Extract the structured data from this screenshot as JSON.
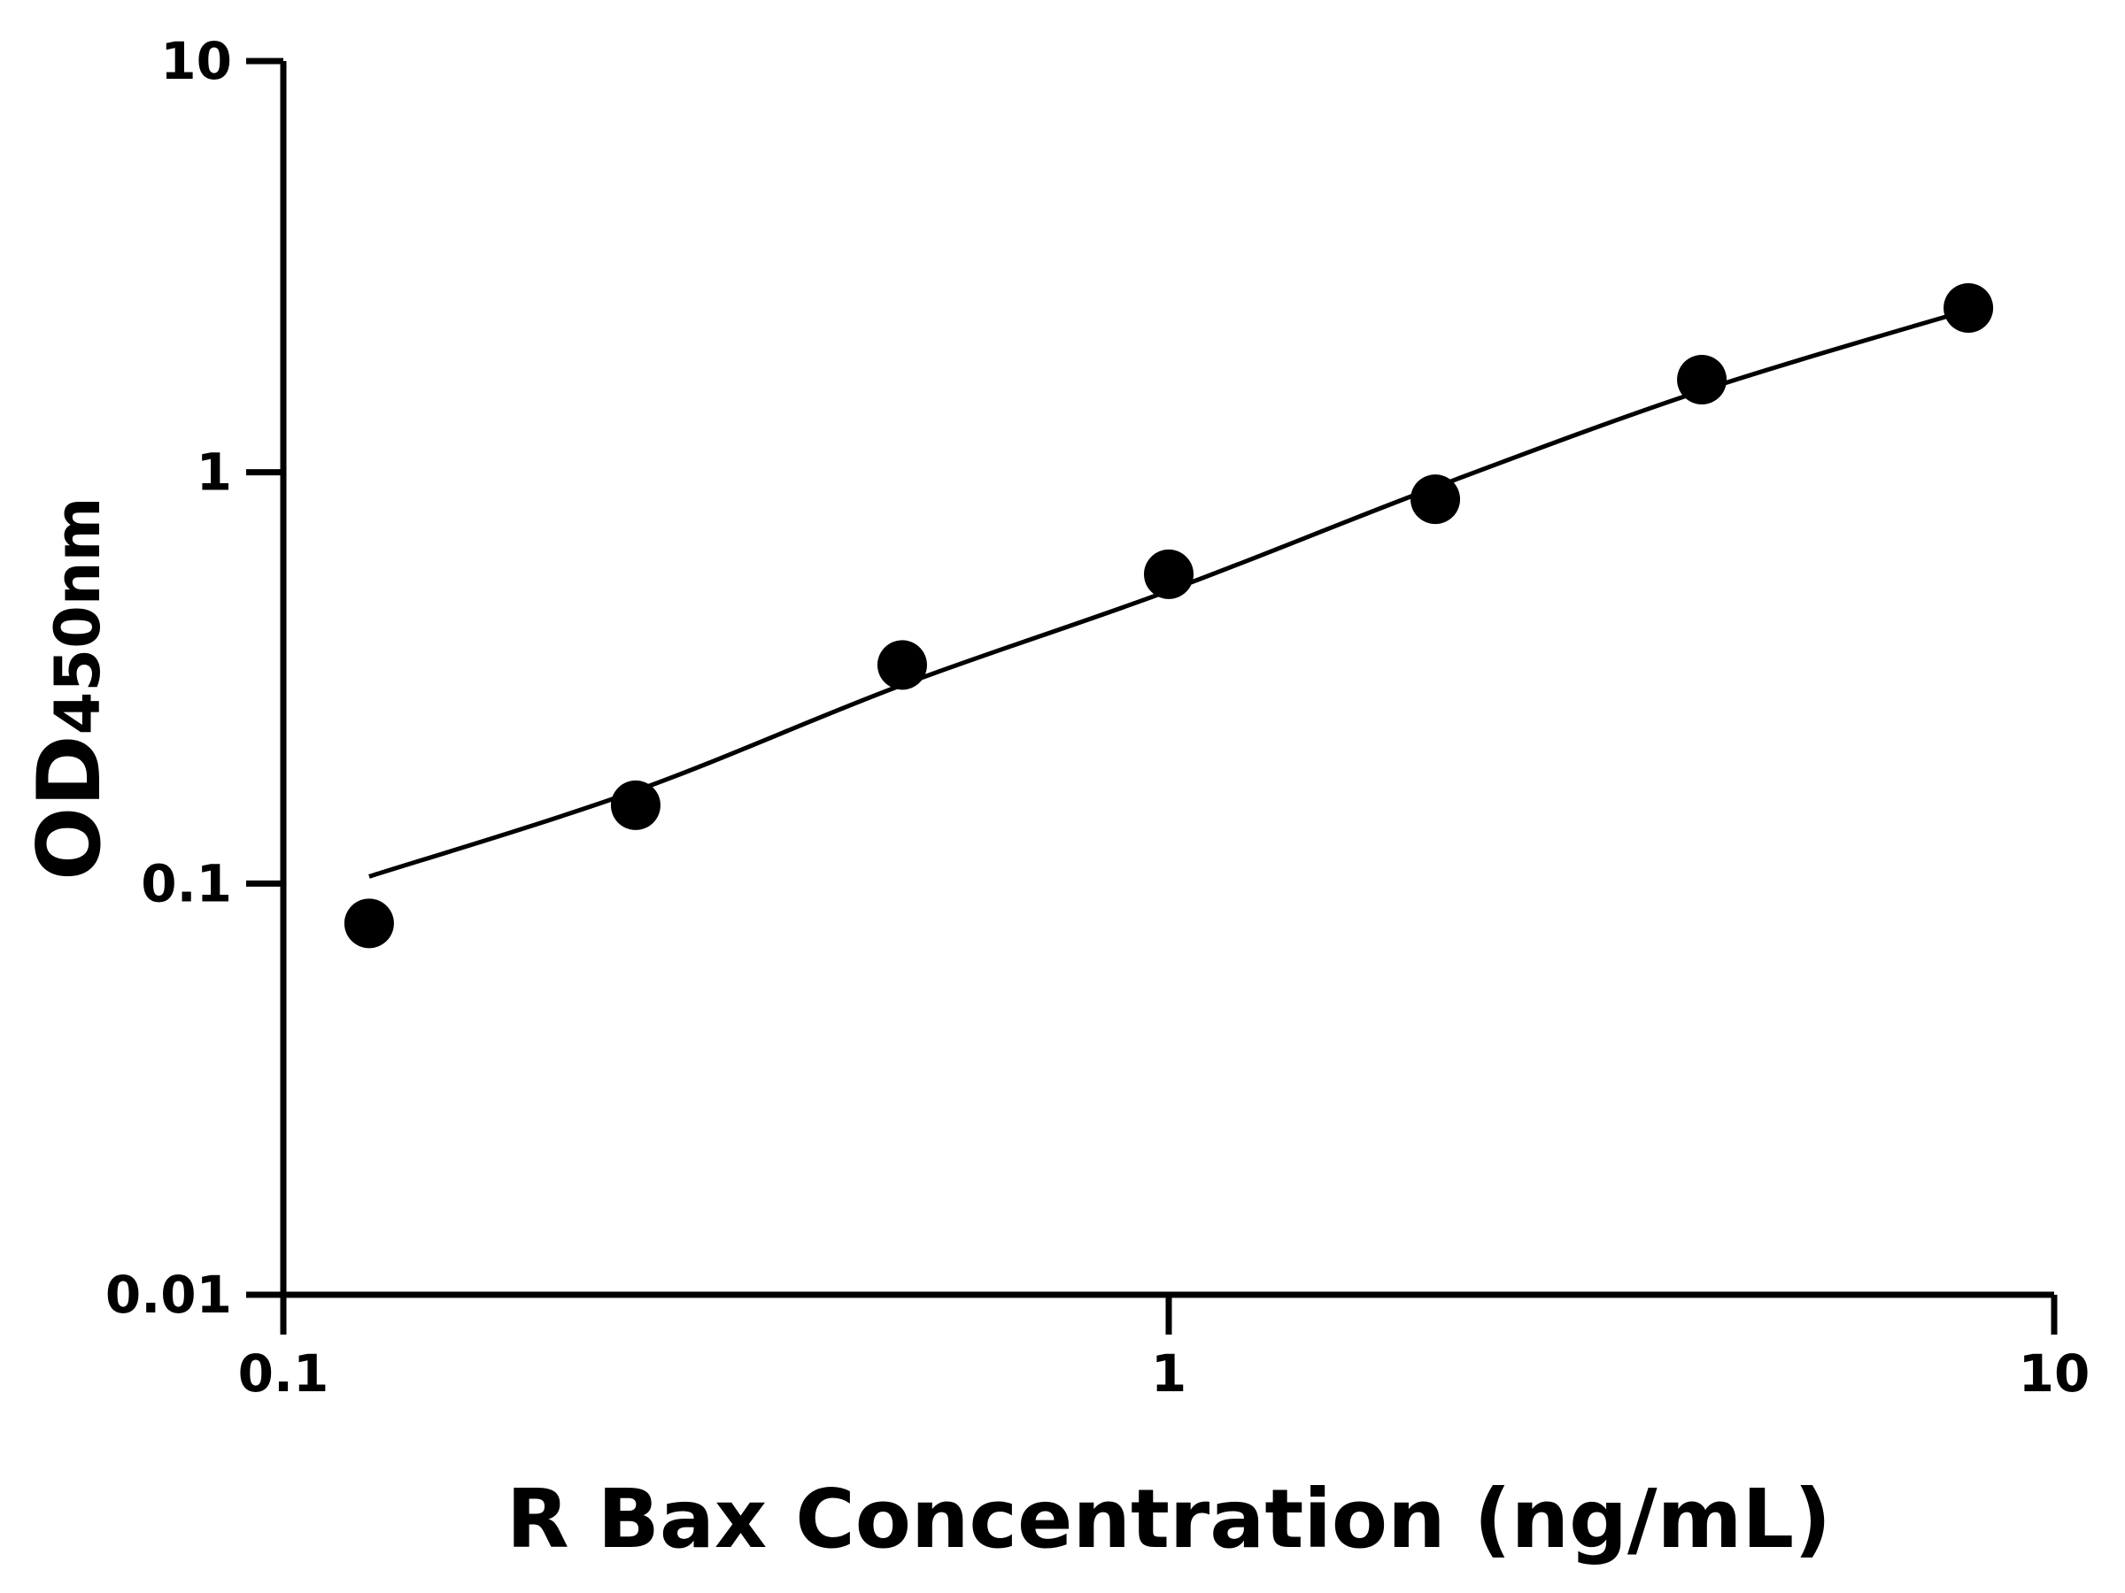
{
  "chart_data": {
    "type": "scatter",
    "title": "",
    "xlabel": "R Bax Concentration (ng/mL)",
    "ylabel_main": "OD",
    "ylabel_sub": "450nm",
    "xscale": "log",
    "yscale": "log",
    "xlim": [
      0.1,
      10
    ],
    "ylim": [
      0.01,
      10
    ],
    "xticks": [
      {
        "v": 0.1,
        "label": "0.1"
      },
      {
        "v": 1,
        "label": "1"
      },
      {
        "v": 10,
        "label": "10"
      }
    ],
    "yticks": [
      {
        "v": 0.01,
        "label": "0.01"
      },
      {
        "v": 0.1,
        "label": "0.1"
      },
      {
        "v": 1,
        "label": "1"
      },
      {
        "v": 10,
        "label": "10"
      }
    ],
    "grid": false,
    "points": {
      "x": [
        0.125,
        0.25,
        0.5,
        1,
        2,
        4,
        8
      ],
      "y": [
        0.08,
        0.155,
        0.34,
        0.565,
        0.86,
        1.68,
        2.51
      ]
    },
    "fit_curve": {
      "x": [
        0.125,
        0.25,
        0.5,
        1,
        2,
        4,
        8
      ],
      "y": [
        0.104,
        0.168,
        0.304,
        0.515,
        0.92,
        1.58,
        2.48
      ]
    },
    "colors": {
      "marker": "#000000",
      "line": "#000000",
      "axis": "#000000"
    }
  }
}
